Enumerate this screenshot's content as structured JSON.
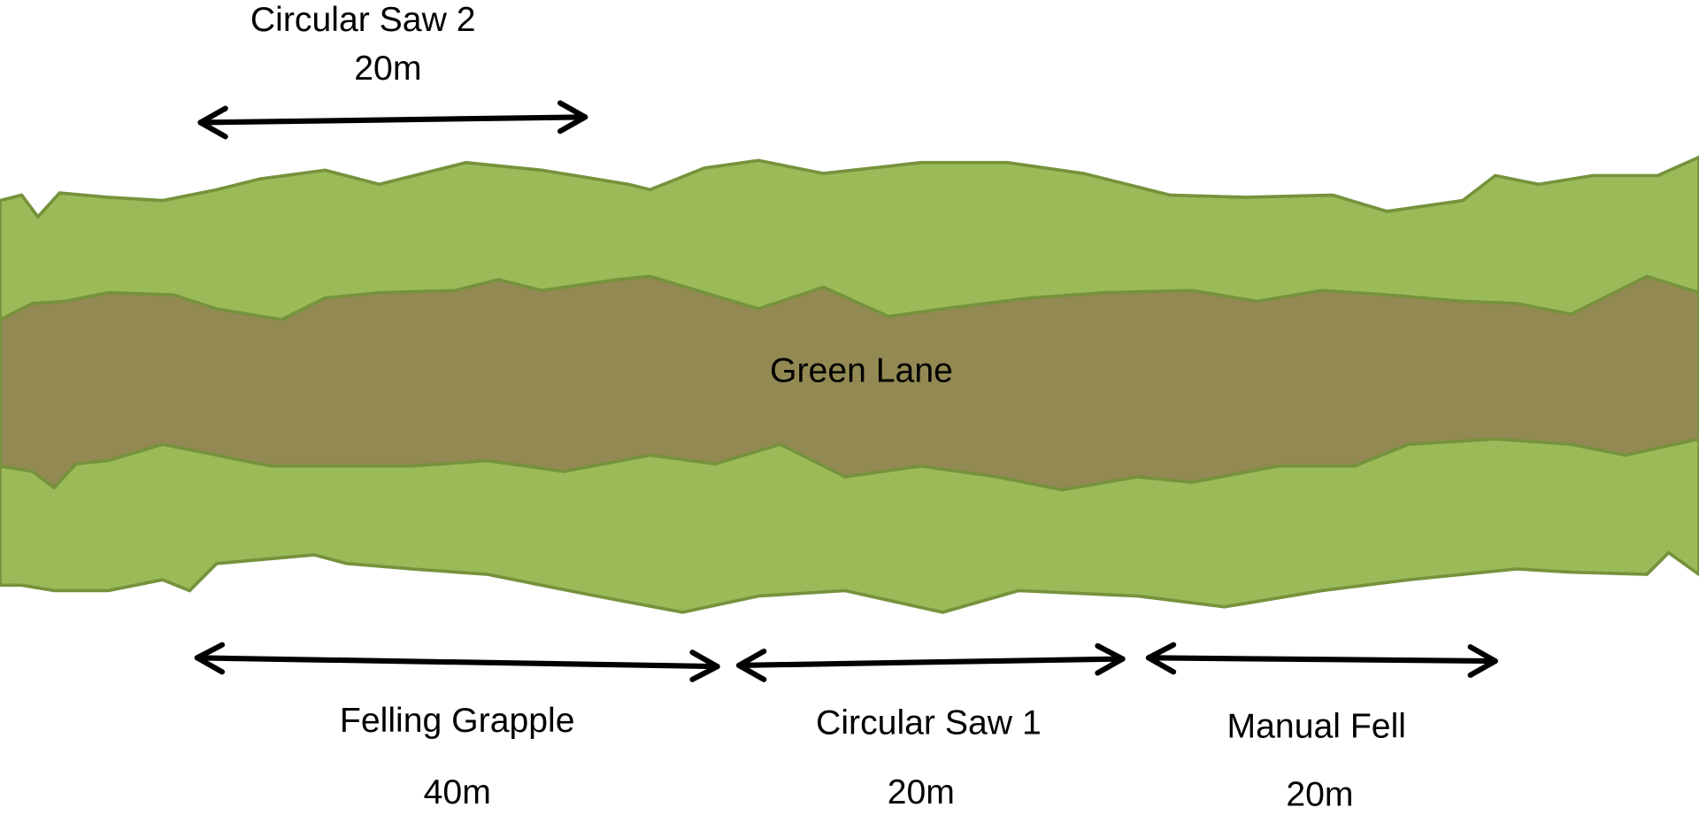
{
  "lane_label": "Green Lane",
  "segments": [
    {
      "name": "Circular Saw 2",
      "length": "20m"
    },
    {
      "name": "Felling Grapple",
      "length": "40m"
    },
    {
      "name": "Circular Saw 1",
      "length": "20m"
    },
    {
      "name": "Manual Fell",
      "length": "20m"
    }
  ]
}
